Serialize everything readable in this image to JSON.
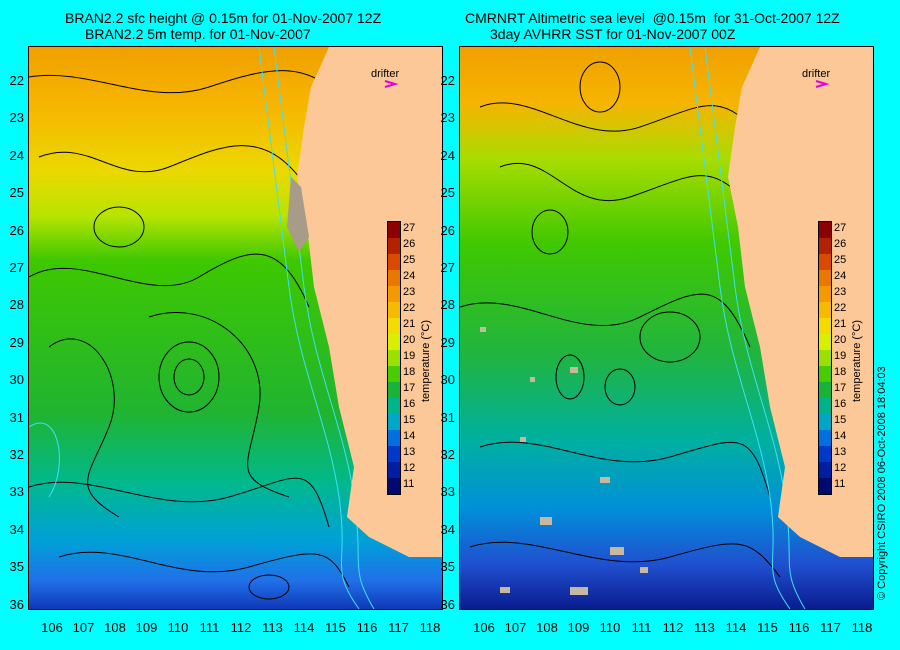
{
  "left_panel": {
    "title_line1": "BRAN2.2 sfc height @ 0.15m for 01-Nov-2007 12Z",
    "title_line2": "BRAN2.2 5m temp. for 01-Nov-2007"
  },
  "right_panel": {
    "title_line1": "CMRNRT Altimetric sea level  @0.15m  for 31-Oct-2007 12Z",
    "title_line2": "3day AVHRR SST for 01-Nov-2007 00Z"
  },
  "drifter_label": "drifter",
  "colorbar": {
    "title": "temperature (°C)",
    "ticks": [
      "27",
      "26",
      "25",
      "24",
      "23",
      "22",
      "21",
      "20",
      "19",
      "18",
      "17",
      "16",
      "15",
      "14",
      "13",
      "12",
      "11"
    ],
    "colors": [
      "#8b0000",
      "#b22200",
      "#d84a00",
      "#e87800",
      "#f29a00",
      "#f6bb00",
      "#f2dc00",
      "#d8ef00",
      "#9be000",
      "#46cc00",
      "#18b43a",
      "#00b48a",
      "#00a6c8",
      "#0070e0",
      "#0038c8",
      "#001ea0",
      "#000a6e"
    ]
  },
  "lat_ticks": [
    "22",
    "23",
    "24",
    "25",
    "26",
    "27",
    "28",
    "29",
    "30",
    "31",
    "32",
    "33",
    "34",
    "35",
    "36"
  ],
  "lon_ticks": [
    "106",
    "107",
    "108",
    "109",
    "110",
    "111",
    "112",
    "113",
    "114",
    "115",
    "116",
    "117",
    "118"
  ],
  "credit": "© Copyright CSIRO 2008     06-Oct-2008 18:04:03",
  "colors": {
    "land": "#fcc898",
    "background": "#00ffff",
    "drifter_marker": "#e000e0"
  }
}
